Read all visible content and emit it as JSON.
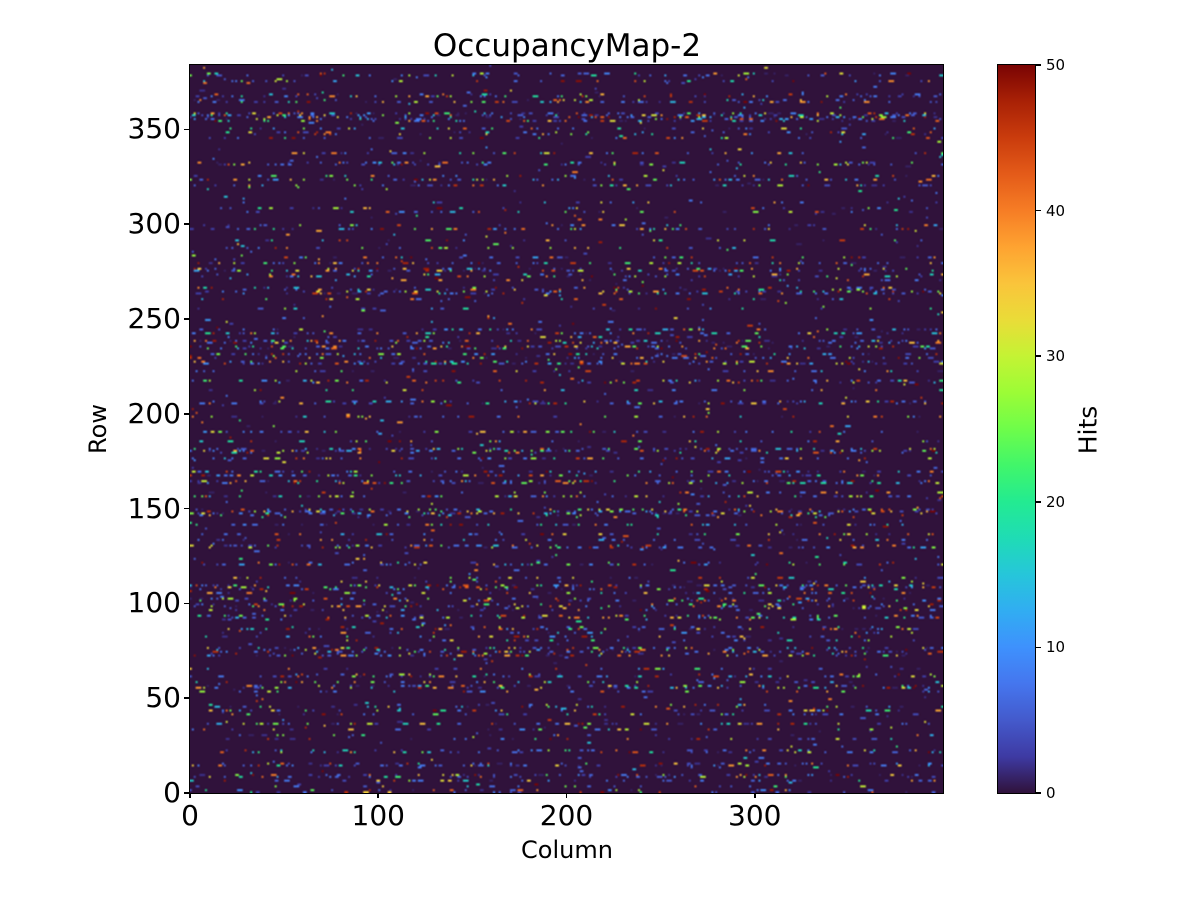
{
  "figure": {
    "background_color": "#ffffff",
    "text_color": "#000000"
  },
  "chart_data": {
    "type": "heatmap",
    "title": "OccupancyMap-2",
    "xlabel": "Column",
    "ylabel": "Row",
    "colorbar_label": "Hits",
    "n_cols": 400,
    "n_rows": 384,
    "xlim": [
      0,
      400
    ],
    "ylim": [
      0,
      384
    ],
    "x_ticks": [
      0,
      100,
      200,
      300
    ],
    "y_ticks": [
      0,
      50,
      100,
      150,
      200,
      250,
      300,
      350
    ],
    "colorbar_ticks": [
      0,
      10,
      20,
      30,
      40,
      50
    ],
    "value_range": [
      0,
      50
    ],
    "grid": false,
    "legend": "none",
    "colormap": "turbo",
    "zero_value_color": "#30123b",
    "max_value_color": "#7a0403",
    "colormap_stops": [
      "#30123b",
      "#3e3aa3",
      "#445acc",
      "#4576ee",
      "#3e91fd",
      "#31adf2",
      "#26c6da",
      "#1fdcb5",
      "#23eb91",
      "#41f66a",
      "#6efd4a",
      "#9cfc36",
      "#c4f334",
      "#eadc38",
      "#fac43b",
      "#fea331",
      "#f67d25",
      "#e45b19",
      "#ca3c0d",
      "#a92106",
      "#7a0403"
    ],
    "data_generation": {
      "description": "sparse random occupancy hits: most cells 0 (dark purple), scattered single-pixel hits with values 1-50 colored by turbo colormap, hits concentrated on a subset of rows, occasional 2-3 pixel horizontal clusters",
      "seed": 1337,
      "row_active_probability": 0.36,
      "active_row_hit_probability_min": 0.05,
      "active_row_hit_probability_max": 0.18,
      "inactive_row_hit_probability": 0.005,
      "cluster_len3_probability": 0.08,
      "cluster_len2_probability": 0.3,
      "low_value_bias_probability": 0.38,
      "low_value_max": 8
    }
  }
}
